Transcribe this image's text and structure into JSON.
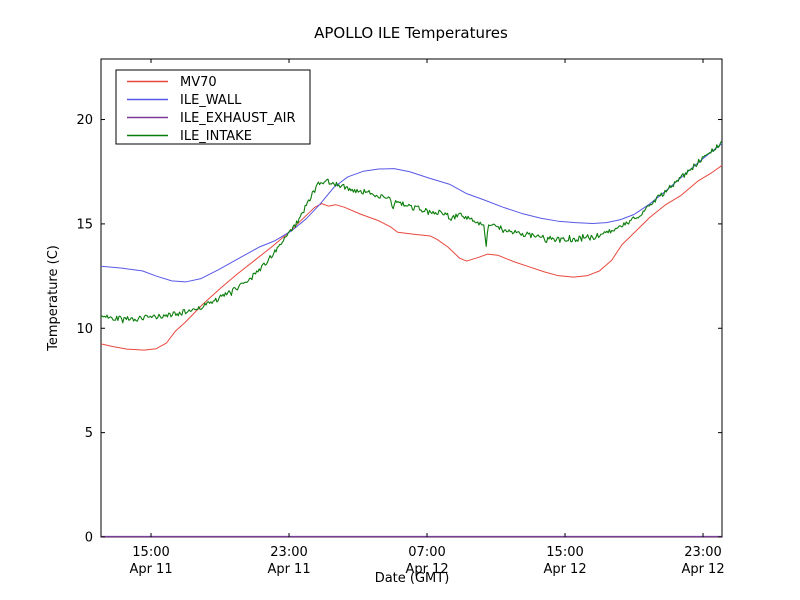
{
  "figure": {
    "background": "#ffffff",
    "axis_color": "#000000"
  },
  "chart_data": {
    "type": "line",
    "title": "APOLLO ILE Temperatures",
    "xlabel": "Date (GMT)",
    "ylabel": "Temperature (C)",
    "x_unit_note": "hours after Apr 11 12:00 GMT",
    "xlim": [
      0.1,
      36.1
    ],
    "ylim": [
      0,
      22.9
    ],
    "grid": false,
    "legend_position": "upper left",
    "yticks": [
      0,
      5,
      10,
      15,
      20
    ],
    "xticks": [
      {
        "t": 3,
        "time": "15:00",
        "date": "Apr 11"
      },
      {
        "t": 11,
        "time": "23:00",
        "date": "Apr 11"
      },
      {
        "t": 19,
        "time": "07:00",
        "date": "Apr 12"
      },
      {
        "t": 27,
        "time": "15:00",
        "date": "Apr 12"
      },
      {
        "t": 35,
        "time": "23:00",
        "date": "Apr 12"
      }
    ],
    "series": [
      {
        "name": "MV70",
        "color": "#e8483e",
        "noise": 0,
        "width": 1,
        "points": [
          [
            0.1,
            9.25
          ],
          [
            0.8,
            9.12
          ],
          [
            1.6,
            9.0
          ],
          [
            2.6,
            8.95
          ],
          [
            3.3,
            9.02
          ],
          [
            3.9,
            9.3
          ],
          [
            4.4,
            9.85
          ],
          [
            5,
            10.3
          ],
          [
            6,
            11.15
          ],
          [
            7,
            11.9
          ],
          [
            8,
            12.6
          ],
          [
            9,
            13.25
          ],
          [
            10,
            13.9
          ],
          [
            11,
            14.6
          ],
          [
            11.8,
            15.25
          ],
          [
            12.5,
            15.8
          ],
          [
            12.9,
            15.97
          ],
          [
            13.3,
            15.85
          ],
          [
            13.7,
            15.92
          ],
          [
            14.2,
            15.8
          ],
          [
            15.2,
            15.45
          ],
          [
            16.2,
            15.15
          ],
          [
            16.9,
            14.85
          ],
          [
            17.3,
            14.6
          ],
          [
            18.3,
            14.5
          ],
          [
            19.2,
            14.42
          ],
          [
            19.6,
            14.25
          ],
          [
            20.2,
            13.9
          ],
          [
            20.9,
            13.35
          ],
          [
            21.3,
            13.22
          ],
          [
            22,
            13.4
          ],
          [
            22.5,
            13.55
          ],
          [
            23.1,
            13.5
          ],
          [
            24,
            13.2
          ],
          [
            24.9,
            12.95
          ],
          [
            25.8,
            12.7
          ],
          [
            26.6,
            12.52
          ],
          [
            27.5,
            12.45
          ],
          [
            28.3,
            12.52
          ],
          [
            29,
            12.75
          ],
          [
            29.7,
            13.25
          ],
          [
            30.3,
            14.0
          ],
          [
            31.1,
            14.65
          ],
          [
            31.9,
            15.3
          ],
          [
            32.8,
            15.9
          ],
          [
            33.7,
            16.35
          ],
          [
            34.7,
            17.05
          ],
          [
            35.5,
            17.45
          ],
          [
            36.1,
            17.8
          ]
        ]
      },
      {
        "name": "ILE_WALL",
        "color": "#5858e8",
        "noise": 0,
        "width": 1,
        "points": [
          [
            0.1,
            12.97
          ],
          [
            1.3,
            12.88
          ],
          [
            2.5,
            12.75
          ],
          [
            3.3,
            12.5
          ],
          [
            4.2,
            12.27
          ],
          [
            5,
            12.22
          ],
          [
            5.9,
            12.38
          ],
          [
            6.9,
            12.8
          ],
          [
            8.2,
            13.4
          ],
          [
            9.3,
            13.9
          ],
          [
            10.2,
            14.2
          ],
          [
            11.2,
            14.7
          ],
          [
            12,
            15.25
          ],
          [
            12.8,
            15.95
          ],
          [
            13.6,
            16.75
          ],
          [
            14.4,
            17.25
          ],
          [
            15.3,
            17.52
          ],
          [
            16.2,
            17.63
          ],
          [
            17.1,
            17.65
          ],
          [
            18,
            17.5
          ],
          [
            19.1,
            17.2
          ],
          [
            20.3,
            16.9
          ],
          [
            21.3,
            16.45
          ],
          [
            22.3,
            16.15
          ],
          [
            23.4,
            15.8
          ],
          [
            24.5,
            15.5
          ],
          [
            25.6,
            15.27
          ],
          [
            26.6,
            15.13
          ],
          [
            27.6,
            15.06
          ],
          [
            28.6,
            15.02
          ],
          [
            29.4,
            15.06
          ],
          [
            30.2,
            15.2
          ],
          [
            31,
            15.45
          ],
          [
            31.9,
            15.95
          ],
          [
            32.8,
            16.55
          ],
          [
            33.7,
            17.2
          ],
          [
            34.6,
            17.85
          ],
          [
            35.4,
            18.4
          ],
          [
            36.1,
            18.85
          ]
        ]
      },
      {
        "name": "ILE_EXHAUST_AIR",
        "color": "#7d3c98",
        "noise": 0,
        "width": 1.4,
        "points": [
          [
            0.1,
            0.02
          ],
          [
            36.1,
            0.02
          ]
        ]
      },
      {
        "name": "ILE_INTAKE",
        "color": "#0b7d0b",
        "noise": 0.13,
        "width": 1.1,
        "points": [
          [
            0.1,
            10.55
          ],
          [
            1,
            10.5
          ],
          [
            2,
            10.45
          ],
          [
            3,
            10.52
          ],
          [
            4,
            10.62
          ],
          [
            5,
            10.78
          ],
          [
            6,
            11.05
          ],
          [
            7,
            11.45
          ],
          [
            8,
            11.95
          ],
          [
            9,
            12.55
          ],
          [
            10,
            13.45
          ],
          [
            10.8,
            14.3
          ],
          [
            11.6,
            15.2
          ],
          [
            12.2,
            16.25
          ],
          [
            12.7,
            16.9
          ],
          [
            13.2,
            17.05
          ],
          [
            13.8,
            16.9
          ],
          [
            14.4,
            16.7
          ],
          [
            15.2,
            16.55
          ],
          [
            16.1,
            16.4
          ],
          [
            16.9,
            16.15
          ],
          [
            17.0,
            15.55
          ],
          [
            17.15,
            16.1
          ],
          [
            17.6,
            15.85
          ],
          [
            18.5,
            15.75
          ],
          [
            19.3,
            15.5
          ],
          [
            19.8,
            15.6
          ],
          [
            20.4,
            15.3
          ],
          [
            20.9,
            15.45
          ],
          [
            21.5,
            15.2
          ],
          [
            21.9,
            15.1
          ],
          [
            22.3,
            15.0
          ],
          [
            22.42,
            13.9
          ],
          [
            22.55,
            14.95
          ],
          [
            23.3,
            14.8
          ],
          [
            24.1,
            14.6
          ],
          [
            25,
            14.45
          ],
          [
            25.9,
            14.3
          ],
          [
            26.8,
            14.22
          ],
          [
            27.6,
            14.22
          ],
          [
            28.4,
            14.32
          ],
          [
            29.2,
            14.5
          ],
          [
            30,
            14.75
          ],
          [
            30.8,
            15.1
          ],
          [
            31.6,
            15.65
          ],
          [
            32.4,
            16.25
          ],
          [
            33.2,
            16.85
          ],
          [
            34,
            17.4
          ],
          [
            34.8,
            18.0
          ],
          [
            35.5,
            18.5
          ],
          [
            36.1,
            18.95
          ]
        ]
      }
    ]
  }
}
